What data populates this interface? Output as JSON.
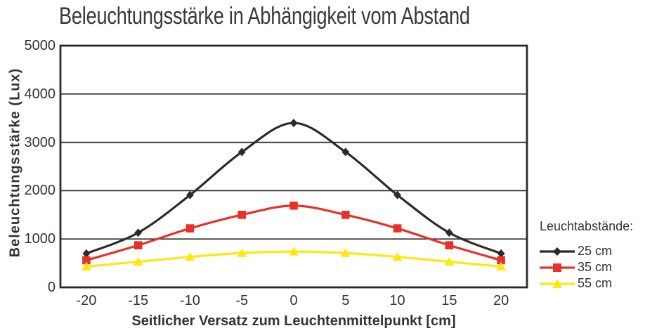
{
  "chart_data": {
    "type": "line",
    "title": "Beleuchtungsstärke in Abhängigkeit vom Abstand",
    "xlabel": "Seitlicher Versatz zum Leuchtenmittelpunkt [cm]",
    "ylabel": "Beleuchtungsstärke (Lux)",
    "legend_title": "Leuchtabstände:",
    "legend_position": "right",
    "grid": "horizontal-gridlines",
    "categories": [
      -20,
      -15,
      -10,
      -5,
      0,
      5,
      10,
      15,
      20
    ],
    "ylim": [
      0,
      5000
    ],
    "yticks": [
      0,
      1000,
      2000,
      3000,
      4000,
      5000
    ],
    "series": [
      {
        "name": "25 cm",
        "marker": "diamond",
        "color": "#2d2b29",
        "values": [
          700,
          1130,
          1910,
          2800,
          3400,
          2800,
          1910,
          1130,
          700
        ]
      },
      {
        "name": "35 cm",
        "marker": "square",
        "color": "#e63229",
        "values": [
          560,
          870,
          1220,
          1500,
          1690,
          1500,
          1220,
          870,
          560
        ]
      },
      {
        "name": "55 cm",
        "marker": "triangle",
        "color": "#ffe712",
        "values": [
          430,
          530,
          630,
          710,
          740,
          710,
          630,
          530,
          430
        ]
      }
    ]
  },
  "colors": {
    "axis": "#2d2b29",
    "text": "#353331",
    "background": "#ffffff"
  }
}
